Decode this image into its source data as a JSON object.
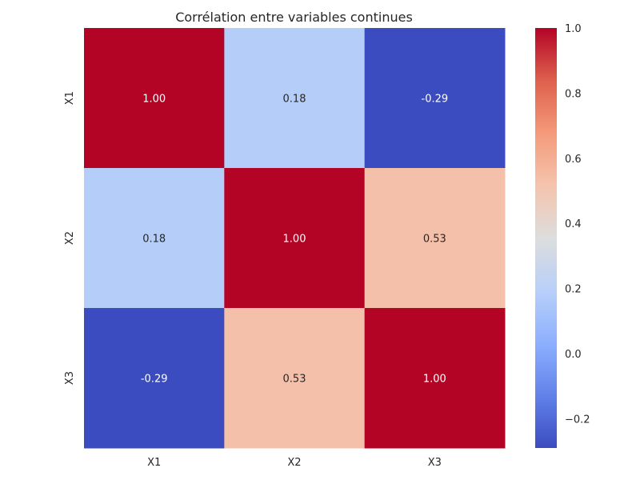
{
  "chart_data": {
    "type": "heatmap",
    "title": "Corrélation entre variables continues",
    "xlabel": "",
    "ylabel": "",
    "x_categories": [
      "X1",
      "X2",
      "X3"
    ],
    "y_categories": [
      "X1",
      "X2",
      "X3"
    ],
    "values": [
      [
        1.0,
        0.18,
        -0.29
      ],
      [
        0.18,
        1.0,
        0.53
      ],
      [
        -0.29,
        0.53,
        1.0
      ]
    ],
    "cell_labels": [
      [
        "1.00",
        "0.18",
        "-0.29"
      ],
      [
        "0.18",
        "1.00",
        "0.53"
      ],
      [
        "-0.29",
        "0.53",
        "1.00"
      ]
    ],
    "colormap": "coolwarm",
    "colorbar": {
      "min": -0.29,
      "max": 1.0,
      "ticks": [
        -0.2,
        0.0,
        0.2,
        0.4,
        0.6,
        0.8,
        1.0
      ],
      "tick_labels": [
        "−0.2",
        "0.0",
        "0.2",
        "0.4",
        "0.6",
        "0.8",
        "1.0"
      ]
    },
    "grid": false,
    "legend": "colorbar-right"
  }
}
